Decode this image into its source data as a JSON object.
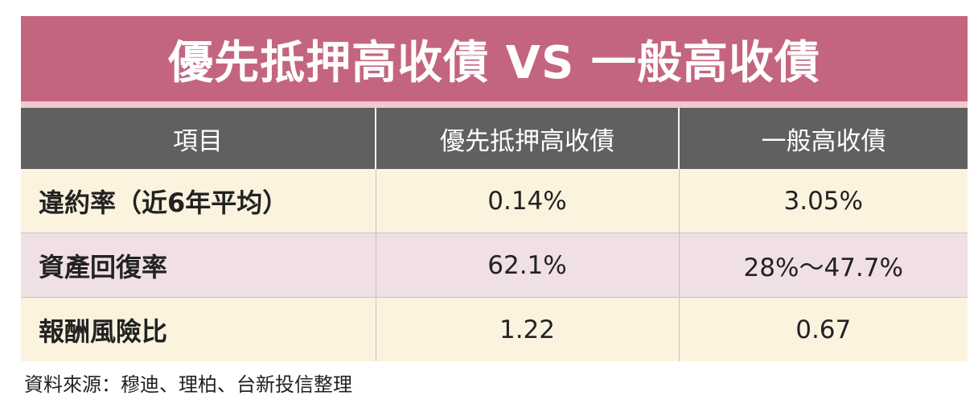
{
  "title": "優先抵押高收債 VS 一般高收債",
  "table": {
    "headers": [
      "項目",
      "優先抵押高收債",
      "一般高收債"
    ],
    "rows": [
      [
        "違約率（近6年平均）",
        "0.14%",
        "3.05%"
      ],
      [
        "資產回復率",
        "62.1%",
        "28%～47.7%"
      ],
      [
        "報酬風險比",
        "1.22",
        "0.67"
      ]
    ]
  },
  "source": "資料來源：穆迪、理柏、台新投信整理",
  "colors": {
    "title_bg": "#c4657f",
    "header_bg": "#606060",
    "row_cream": "#fcf3df",
    "row_pink": "#f0dfe3"
  }
}
